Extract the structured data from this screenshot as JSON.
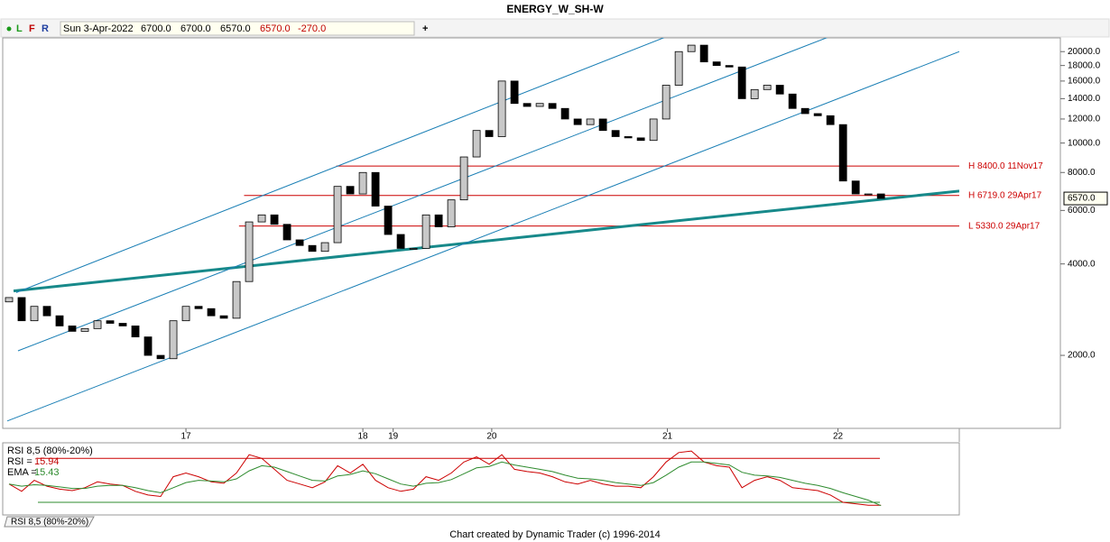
{
  "toolbar": {
    "dot_labels": [
      "L",
      "F",
      "R"
    ],
    "date": "Sun 3-Apr-2022",
    "fields": [
      "6700.0",
      "6700.0",
      "6570.0",
      "6570.0",
      "-270.0"
    ],
    "add": "+"
  },
  "chart_data": [
    {
      "type": "candlestick",
      "title": "ENERGY_W_SH-W",
      "open": [
        3000,
        3100,
        2600,
        2900,
        2700,
        2500,
        2400,
        2450,
        2600,
        2550,
        2500,
        2300,
        2000,
        1950,
        2600,
        2900,
        2850,
        2700,
        2650,
        3500,
        5500,
        5800,
        5400,
        4800,
        4600,
        4400,
        4700,
        7200,
        6800,
        8000,
        6200,
        5000,
        4500,
        4500,
        5800,
        5300,
        6500,
        9000,
        11000,
        10500,
        16000,
        13500,
        13200,
        13500,
        13000,
        12000,
        11500,
        12000,
        11000,
        10500,
        10400,
        10200,
        12000,
        15500,
        20000,
        21000,
        18500,
        18000,
        17800,
        14000,
        15000,
        15500,
        14500,
        13000,
        12500,
        12300,
        11500,
        7500,
        6800,
        6800
      ],
      "close": [
        3100,
        2600,
        2900,
        2700,
        2500,
        2400,
        2450,
        2600,
        2550,
        2500,
        2300,
        2000,
        1950,
        2600,
        2900,
        2850,
        2700,
        2650,
        3500,
        5500,
        5800,
        5400,
        4800,
        4600,
        4400,
        4700,
        7200,
        6800,
        8000,
        6200,
        5000,
        4500,
        4500,
        5800,
        5300,
        6500,
        9000,
        11000,
        10500,
        16000,
        13500,
        13200,
        13500,
        13000,
        12000,
        11500,
        12000,
        11000,
        10500,
        10400,
        10200,
        12000,
        15500,
        20000,
        21000,
        18500,
        18000,
        17800,
        14000,
        15000,
        15500,
        14500,
        13000,
        12500,
        12300,
        11500,
        7500,
        6800,
        6800,
        6570
      ],
      "up_color": "#c8c8c8",
      "down_color": "#000000",
      "xlim": [
        -0.5,
        75.2
      ],
      "xticks": [
        {
          "value": 14,
          "label": "17"
        },
        {
          "value": 28,
          "label": "18"
        },
        {
          "value": 30.4,
          "label": "19"
        },
        {
          "value": 38.2,
          "label": "20"
        },
        {
          "value": 52.1,
          "label": "21"
        },
        {
          "value": 65.6,
          "label": "22"
        }
      ],
      "log_scale": true,
      "ylim": [
        1150,
        22500
      ],
      "yticks": [
        {
          "value": 20000,
          "label": "20000.0"
        },
        {
          "value": 18000,
          "label": "18000.0"
        },
        {
          "value": 16000,
          "label": "16000.0"
        },
        {
          "value": 14000,
          "label": "14000.0"
        },
        {
          "value": 12000,
          "label": "12000.0"
        },
        {
          "value": 10000,
          "label": "10000.0"
        },
        {
          "value": 8000,
          "label": "8000.0"
        },
        {
          "value": 6000,
          "label": "6000.0"
        },
        {
          "value": 4000,
          "label": "4000.0"
        },
        {
          "value": 2000,
          "label": "2000.0"
        }
      ],
      "levels": [
        {
          "value": 8400,
          "label": "H 8400.0 11Nov17",
          "x_start": 25.9
        },
        {
          "value": 6719,
          "label": "H 6719.0 29Apr17",
          "x_start": 18.6
        },
        {
          "value": 5330,
          "label": "L 5330.0 29Apr17",
          "x_start": 18.2
        }
      ],
      "level_color": "#cc0000",
      "trendlines": [
        {
          "x": [
            0.36,
            75.2
          ],
          "values": [
            3260,
            6950
          ],
          "color": "#17898a",
          "style": "thick"
        },
        {
          "x": [
            0.57,
            52.1
          ],
          "values": [
            3220,
            22460
          ],
          "color": "#1a7fb5",
          "style": "thin"
        },
        {
          "x": [
            0.71,
            65
          ],
          "values": [
            2070,
            22460
          ],
          "color": "#1a7fb5",
          "style": "thin"
        },
        {
          "x": [
            -0.14,
            75.2
          ],
          "values": [
            1216,
            20000
          ],
          "color": "#1a7fb5",
          "style": "thin"
        }
      ],
      "last_price": {
        "value": 6570,
        "label": "6570.0"
      }
    },
    {
      "type": "line",
      "title": "RSI 8,5 (80%-20%)",
      "ylim": [
        4,
        100
      ],
      "levels": [
        80,
        20
      ],
      "level_colors": [
        "#cc0000",
        "#2e8b2e"
      ],
      "series": [
        {
          "name": "RSI =",
          "color": "#cc0000",
          "values": [
            45,
            35,
            50,
            42,
            38,
            36,
            40,
            48,
            45,
            43,
            35,
            30,
            28,
            55,
            60,
            55,
            48,
            46,
            60,
            85,
            80,
            65,
            50,
            45,
            40,
            48,
            70,
            60,
            72,
            50,
            40,
            35,
            38,
            55,
            50,
            60,
            75,
            82,
            72,
            85,
            65,
            62,
            60,
            55,
            48,
            45,
            50,
            45,
            42,
            42,
            40,
            55,
            75,
            88,
            90,
            75,
            70,
            68,
            40,
            50,
            55,
            50,
            40,
            38,
            36,
            30,
            20,
            18,
            16,
            15.94
          ]
        },
        {
          "name": "EMA =",
          "color": "#2e8b2e",
          "values": [
            45,
            42,
            44,
            43,
            41,
            39,
            39,
            42,
            43,
            43,
            40,
            36,
            33,
            40,
            47,
            50,
            49,
            48,
            52,
            63,
            70,
            68,
            62,
            56,
            50,
            49,
            56,
            58,
            63,
            59,
            52,
            45,
            42,
            46,
            47,
            51,
            59,
            67,
            69,
            75,
            71,
            68,
            65,
            62,
            57,
            53,
            52,
            50,
            47,
            45,
            43,
            47,
            57,
            68,
            75,
            75,
            73,
            71,
            61,
            57,
            56,
            54,
            50,
            46,
            43,
            39,
            33,
            28,
            23,
            15.43
          ]
        }
      ]
    }
  ],
  "footer": "Chart created by Dynamic Trader  (c) 1996-2014"
}
